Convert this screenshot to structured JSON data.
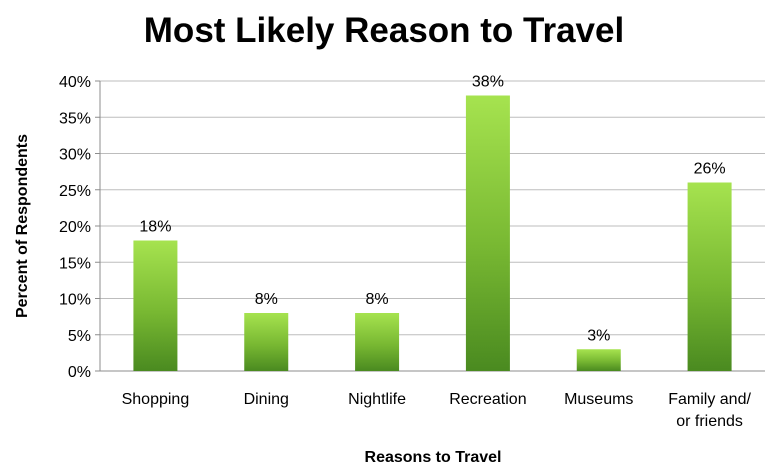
{
  "chart_data": {
    "type": "bar",
    "title": "Most Likely Reason to Travel",
    "xlabel": "Reasons to Travel",
    "ylabel": "Percent of Respondents",
    "categories": [
      [
        "Shopping"
      ],
      [
        "Dining"
      ],
      [
        "Nightlife"
      ],
      [
        "Recreation"
      ],
      [
        "Museums"
      ],
      [
        "Family and/",
        "or friends"
      ]
    ],
    "values": [
      18,
      8,
      8,
      38,
      3,
      26
    ],
    "data_labels": [
      "18%",
      "8%",
      "8%",
      "38%",
      "3%",
      "26%"
    ],
    "ylim": [
      0,
      40
    ],
    "yticks": [
      0,
      5,
      10,
      15,
      20,
      25,
      30,
      35,
      40
    ],
    "ytick_labels": [
      "0%",
      "5%",
      "10%",
      "15%",
      "20%",
      "25%",
      "30%",
      "35%",
      "40%"
    ],
    "grid": true,
    "legend": "none",
    "colors": {
      "bar_top": "#a6e34f",
      "bar_mid": "#78b832",
      "bar_bottom": "#4a8a20",
      "grid": "#bdbdbd",
      "axis": "#8c8c8c"
    }
  }
}
